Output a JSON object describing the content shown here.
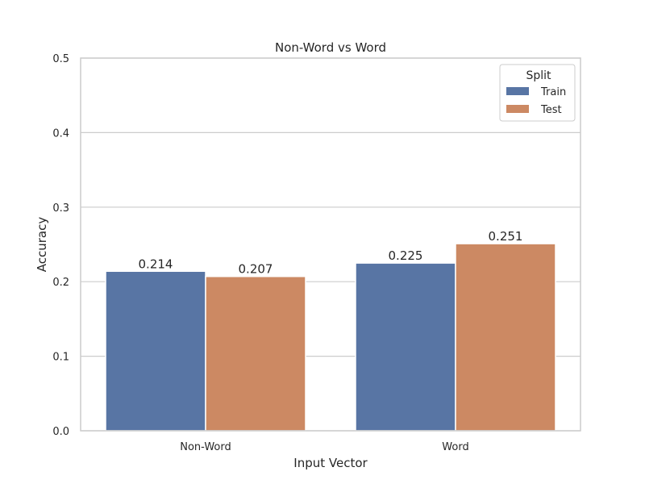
{
  "chart_data": {
    "type": "bar",
    "title": "Non-Word vs Word",
    "xlabel": "Input Vector",
    "ylabel": "Accuracy",
    "categories": [
      "Non-Word",
      "Word"
    ],
    "series": [
      {
        "name": "Train",
        "values": [
          0.214,
          0.225
        ],
        "labels": [
          "0.214",
          "0.225"
        ],
        "color": "#5875a4"
      },
      {
        "name": "Test",
        "values": [
          0.207,
          0.251
        ],
        "labels": [
          "0.207",
          "0.251"
        ],
        "color": "#cc8963"
      }
    ],
    "ylim": [
      0,
      0.5
    ],
    "yticks": [
      0.0,
      0.1,
      0.2,
      0.3,
      0.4,
      0.5
    ],
    "ytick_labels": [
      "0.0",
      "0.1",
      "0.2",
      "0.3",
      "0.4",
      "0.5"
    ],
    "grid": true,
    "legend": {
      "title": "Split",
      "position": "top-right"
    }
  }
}
